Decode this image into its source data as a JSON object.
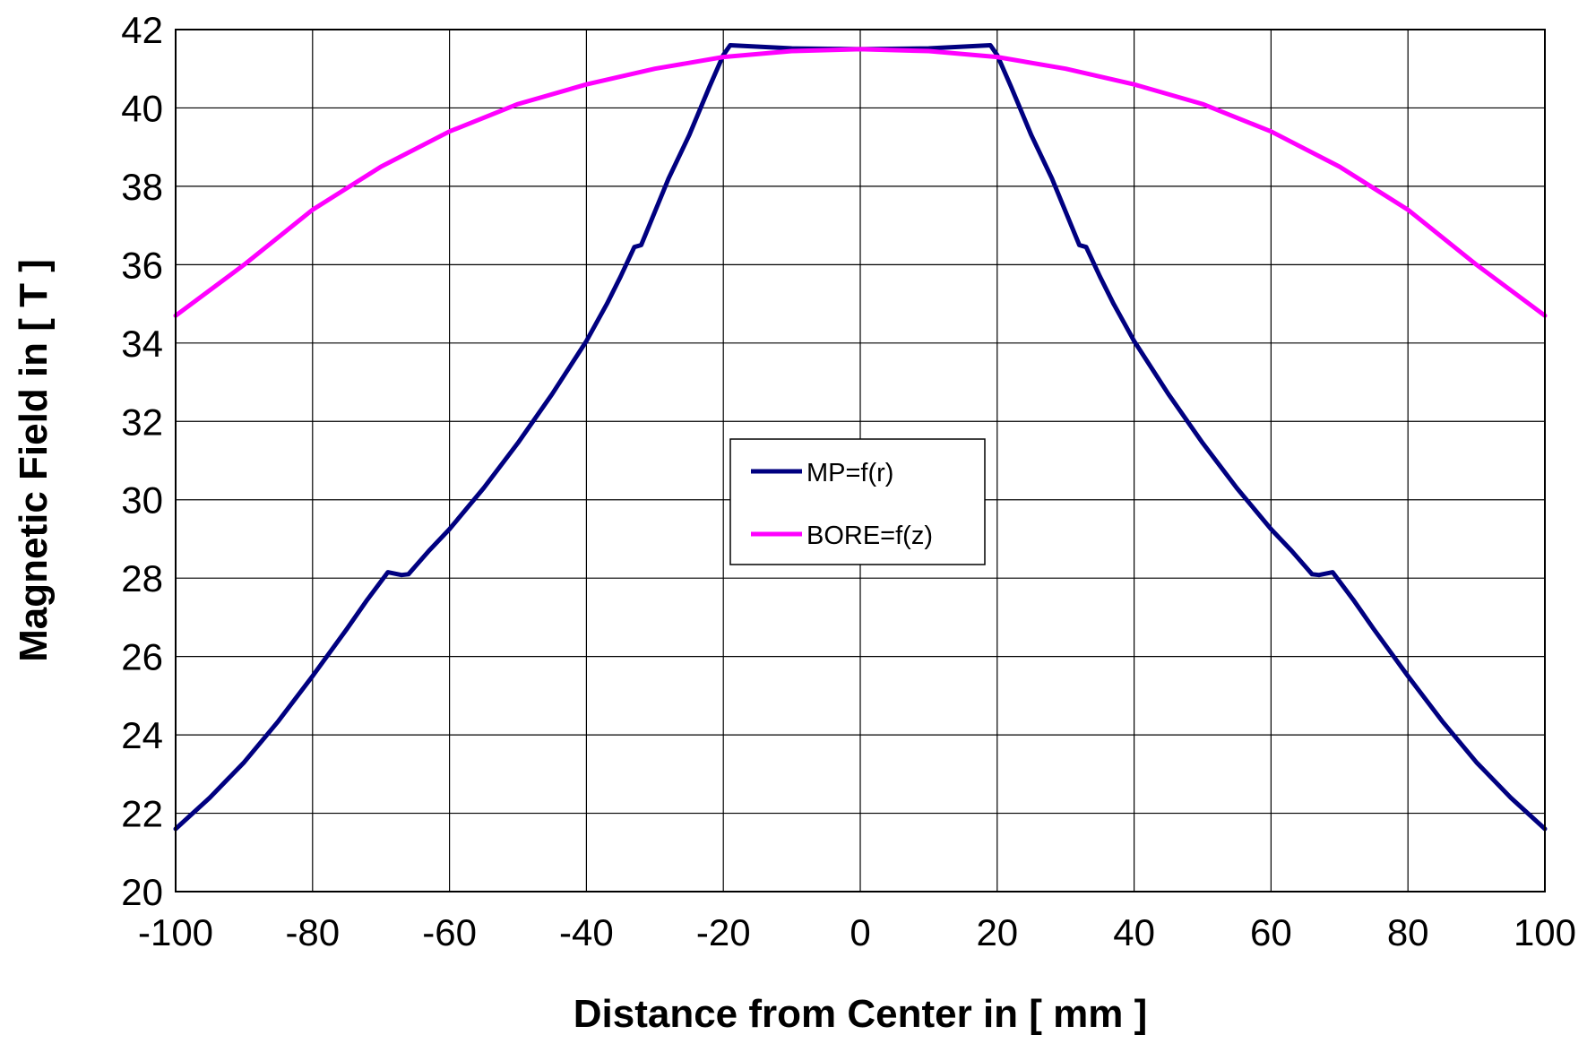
{
  "chart_data": {
    "type": "line",
    "xlabel": "Distance from Center in [ mm ]",
    "ylabel": "Magnetic Field in [ T ]",
    "xlim": [
      -100,
      100
    ],
    "ylim": [
      20,
      42
    ],
    "xticks": [
      -100,
      -80,
      -60,
      -40,
      -20,
      0,
      20,
      40,
      60,
      80,
      100
    ],
    "yticks": [
      20,
      22,
      24,
      26,
      28,
      30,
      32,
      34,
      36,
      38,
      40,
      42
    ],
    "grid": true,
    "legend_position": "center",
    "series": [
      {
        "name": "MP=f(r)",
        "color": "#000080",
        "x": [
          -100,
          -95,
          -90,
          -85,
          -80,
          -75,
          -72,
          -69,
          -67,
          -66,
          -63,
          -60,
          -55,
          -50,
          -45,
          -40,
          -37,
          -35,
          -33,
          -32,
          -30,
          -28,
          -25,
          -22,
          -20,
          -19,
          -10,
          0,
          10,
          19,
          20,
          22,
          25,
          28,
          30,
          32,
          33,
          35,
          37,
          40,
          45,
          50,
          55,
          60,
          63,
          66,
          67,
          69,
          72,
          75,
          80,
          85,
          90,
          95,
          100
        ],
        "y": [
          21.6,
          22.4,
          23.3,
          24.35,
          25.5,
          26.7,
          27.45,
          28.15,
          28.08,
          28.1,
          28.7,
          29.25,
          30.3,
          31.45,
          32.7,
          34.05,
          35.0,
          35.7,
          36.45,
          36.5,
          37.35,
          38.2,
          39.3,
          40.55,
          41.35,
          41.6,
          41.52,
          41.5,
          41.52,
          41.6,
          41.35,
          40.55,
          39.3,
          38.2,
          37.35,
          36.5,
          36.45,
          35.7,
          35.0,
          34.05,
          32.7,
          31.45,
          30.3,
          29.25,
          28.7,
          28.1,
          28.08,
          28.15,
          27.45,
          26.7,
          25.5,
          24.35,
          23.3,
          22.4,
          21.6
        ]
      },
      {
        "name": "BORE=f(z)",
        "color": "#ff00ff",
        "x": [
          -100,
          -90,
          -80,
          -70,
          -60,
          -50,
          -40,
          -30,
          -20,
          -10,
          0,
          10,
          20,
          30,
          40,
          50,
          60,
          70,
          80,
          90,
          100
        ],
        "y": [
          34.7,
          36.0,
          37.4,
          38.5,
          39.4,
          40.1,
          40.6,
          41.0,
          41.3,
          41.45,
          41.5,
          41.45,
          41.3,
          41.0,
          40.6,
          40.1,
          39.4,
          38.5,
          37.4,
          36.0,
          34.7
        ]
      }
    ]
  }
}
